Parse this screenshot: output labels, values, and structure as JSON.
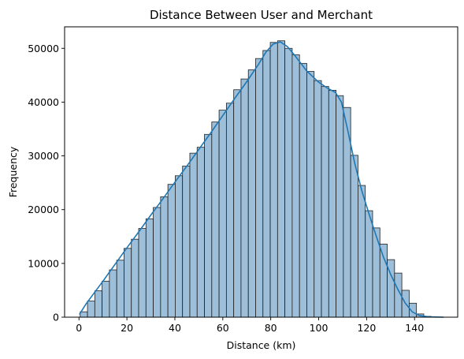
{
  "chart_data": {
    "type": "bar",
    "title": "Distance Between User and Merchant",
    "xlabel": "Distance (km)",
    "ylabel": "Frequency",
    "xlim": [
      -6,
      158
    ],
    "ylim": [
      0,
      54000
    ],
    "bin_start": 0.5,
    "bin_width": 3.05,
    "x_ticks": [
      0,
      20,
      40,
      60,
      80,
      100,
      120,
      140
    ],
    "y_ticks": [
      0,
      10000,
      20000,
      30000,
      40000,
      50000
    ],
    "values": [
      1000,
      3000,
      4900,
      6700,
      8800,
      10600,
      12800,
      14500,
      16500,
      18300,
      20400,
      22400,
      24700,
      26300,
      28100,
      30500,
      31600,
      34000,
      36300,
      38500,
      39800,
      42300,
      44300,
      46000,
      48100,
      49600,
      51100,
      51400,
      50000,
      48800,
      47200,
      45700,
      44000,
      42900,
      42200,
      41200,
      39000,
      30100,
      24500,
      19800,
      16600,
      13600,
      10700,
      8200,
      5000,
      2600,
      600,
      150,
      30
    ],
    "kde": [
      [
        0.3,
        600
      ],
      [
        3,
        2500
      ],
      [
        6,
        4300
      ],
      [
        10,
        6700
      ],
      [
        15,
        9800
      ],
      [
        20,
        12900
      ],
      [
        25,
        15900
      ],
      [
        30,
        19000
      ],
      [
        35,
        22000
      ],
      [
        40,
        25100
      ],
      [
        45,
        28100
      ],
      [
        50,
        31200
      ],
      [
        55,
        34300
      ],
      [
        60,
        37500
      ],
      [
        65,
        40700
      ],
      [
        70,
        43800
      ],
      [
        75,
        47100
      ],
      [
        78,
        49300
      ],
      [
        81,
        50800
      ],
      [
        84,
        51200
      ],
      [
        87,
        50300
      ],
      [
        90,
        48700
      ],
      [
        95,
        45800
      ],
      [
        100,
        43700
      ],
      [
        104,
        42500
      ],
      [
        107,
        41800
      ],
      [
        109.5,
        40000
      ],
      [
        112,
        35000
      ],
      [
        115,
        28700
      ],
      [
        118,
        23500
      ],
      [
        121,
        19200
      ],
      [
        124,
        15100
      ],
      [
        127,
        11200
      ],
      [
        130,
        8000
      ],
      [
        133,
        5200
      ],
      [
        136,
        2700
      ],
      [
        139,
        1000
      ],
      [
        142,
        300
      ],
      [
        146,
        60
      ],
      [
        152,
        0
      ]
    ],
    "colors": {
      "bar_fill": "#9dbfd9",
      "bar_edge": "#1f1f1f",
      "kde_line": "#1f77b4"
    }
  }
}
